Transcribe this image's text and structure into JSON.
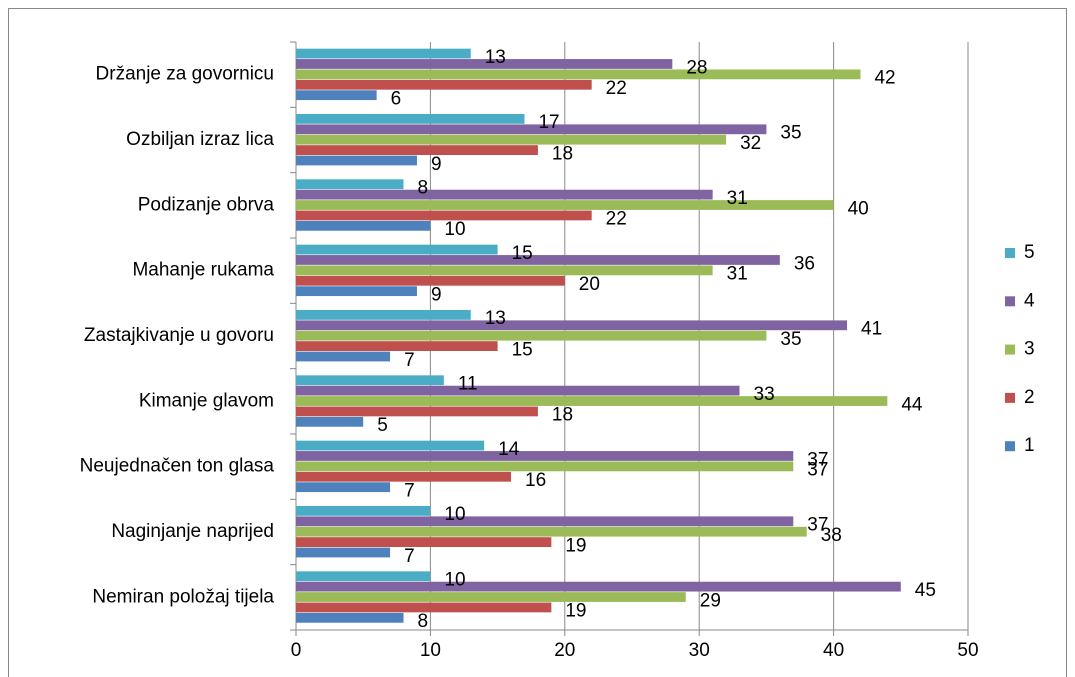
{
  "chart_data": {
    "type": "bar",
    "orientation": "horizontal",
    "categories": [
      "Držanje za govornicu",
      "Ozbiljan izraz lica",
      "Podizanje obrva",
      "Mahanje rukama",
      "Zastajkivanje u govoru",
      "Kimanje glavom",
      "Neujednačen ton glasa",
      "Naginjanje naprijed",
      "Nemiran položaj tijela"
    ],
    "series": [
      {
        "name": "1",
        "color": "#4f81bd",
        "values": [
          6,
          9,
          10,
          9,
          7,
          5,
          7,
          7,
          8
        ]
      },
      {
        "name": "2",
        "color": "#c0504d",
        "values": [
          22,
          18,
          22,
          20,
          15,
          18,
          16,
          19,
          19
        ]
      },
      {
        "name": "3",
        "color": "#9bbb59",
        "values": [
          42,
          32,
          40,
          31,
          35,
          44,
          37,
          38,
          29
        ]
      },
      {
        "name": "4",
        "color": "#8064a2",
        "values": [
          28,
          35,
          31,
          36,
          41,
          33,
          37,
          37,
          45
        ]
      },
      {
        "name": "5",
        "color": "#4bacc6",
        "values": [
          13,
          17,
          8,
          15,
          13,
          11,
          14,
          10,
          10
        ]
      }
    ],
    "xlim": [
      0,
      50
    ],
    "xticks": [
      0,
      10,
      20,
      30,
      40,
      50
    ],
    "grid": true,
    "legend": "right"
  }
}
